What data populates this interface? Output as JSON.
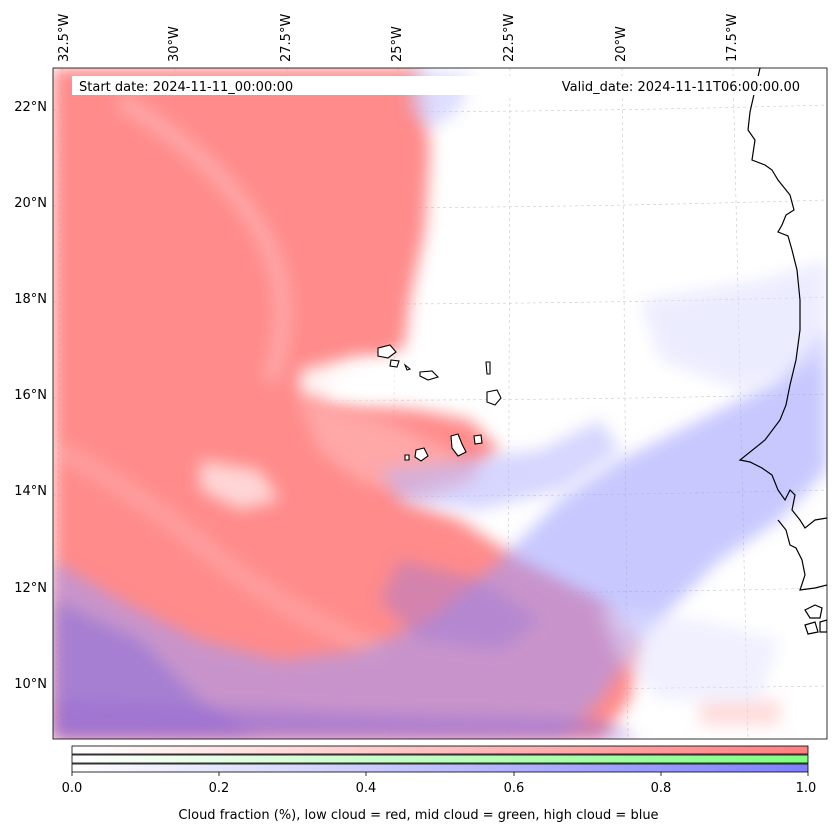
{
  "info": {
    "start_date": "Start date: 2024-11-11_00:00:00",
    "valid_date": "Valid_date: 2024-11-11T06:00:00.00"
  },
  "axes": {
    "lon_labels": [
      "32.5°W",
      "30°W",
      "27.5°W",
      "25°W",
      "22.5°W",
      "20°W",
      "17.5°W"
    ],
    "lat_labels": [
      "22°N",
      "20°N",
      "18°N",
      "16°N",
      "14°N",
      "12°N",
      "10°N"
    ]
  },
  "colorbar": {
    "ticks": [
      "0.0",
      "0.2",
      "0.4",
      "0.6",
      "0.8",
      "1.0"
    ],
    "low_color": "#ff7f7f",
    "mid_color": "#7fff7f",
    "high_color": "#7f7fff",
    "caption": "Cloud fraction (%), low cloud = red, mid cloud = green, high cloud = blue"
  }
}
